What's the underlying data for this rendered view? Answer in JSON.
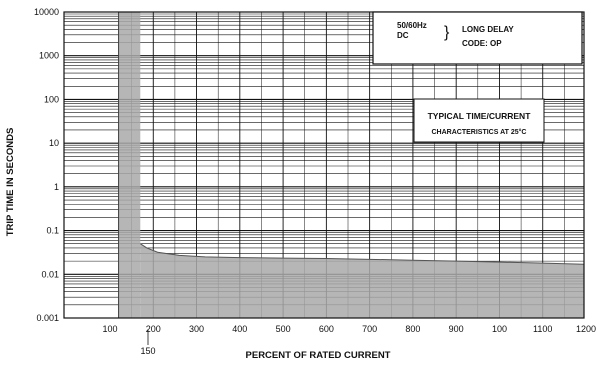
{
  "chart_data": {
    "type": "area",
    "title": "",
    "xlabel": "PERCENT OF RATED CURRENT",
    "ylabel": "TRIP TIME IN SECONDS",
    "yscale": "log",
    "ylim": [
      0.001,
      10000
    ],
    "y_ticks": [
      "10000",
      "1000",
      "100",
      "10",
      "1",
      "0.1",
      "0.01",
      "0.001"
    ],
    "x_ticks": [
      "100",
      "200",
      "300",
      "400",
      "500",
      "600",
      "700",
      "800",
      "900",
      "100",
      "1100",
      "1200"
    ],
    "x_extra_tick": "150",
    "band": {
      "x_from": 120,
      "x_to": 170,
      "description_visible": false
    },
    "curve": {
      "x": [
        170,
        185,
        210,
        260,
        320,
        400,
        500,
        600,
        700,
        800,
        900,
        1000,
        1100,
        1220
      ],
      "y": [
        0.05,
        0.04,
        0.032,
        0.027,
        0.025,
        0.024,
        0.0235,
        0.023,
        0.022,
        0.021,
        0.02,
        0.019,
        0.018,
        0.017
      ]
    },
    "grid": true,
    "legend": {
      "placement": "top-right",
      "line1_left": "50/60Hz",
      "line2_left": "DC",
      "brace": "}",
      "line1_right": "LONG DELAY",
      "line2_right": "CODE: OP"
    },
    "annotation": {
      "placement": "middle-right",
      "line1": "TYPICAL TIME/CURRENT",
      "line2": "CHARACTERISTICS AT 25°C"
    },
    "colors": {
      "shade": "#a9a9a9",
      "grid": "#111111"
    }
  }
}
